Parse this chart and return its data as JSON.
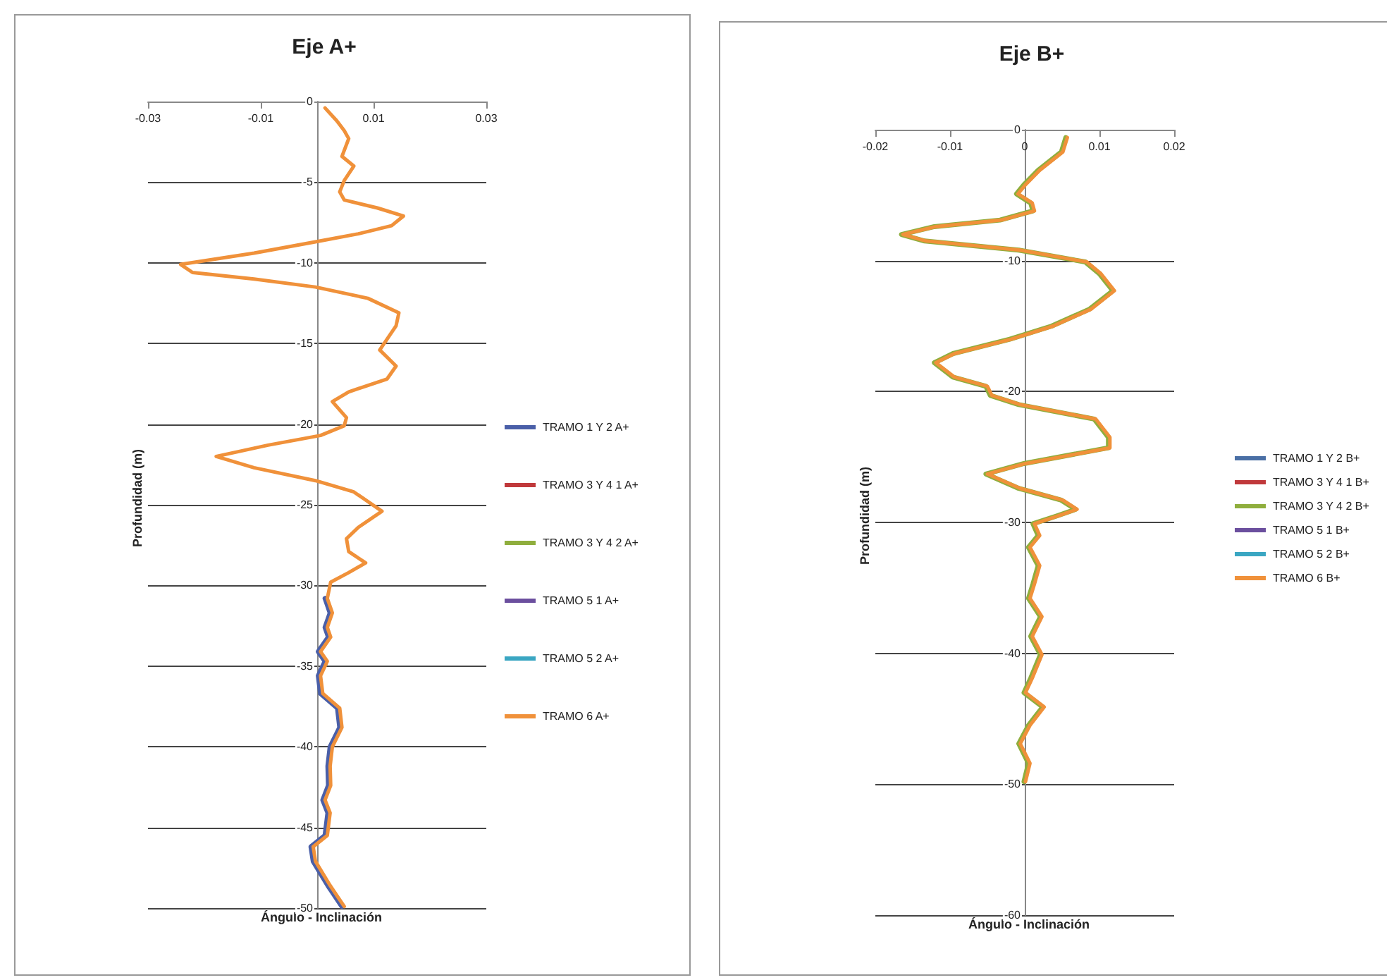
{
  "chart_data": [
    {
      "type": "line",
      "title": "Eje A+",
      "xlabel": "Ángulo - Inclinación",
      "ylabel": "Profundidad (m)",
      "xlim": [
        -0.03,
        0.03
      ],
      "xticks": [
        -0.03,
        -0.01,
        0.01,
        0.03
      ],
      "ylim": [
        -50,
        0
      ],
      "yticks": [
        0,
        -5,
        -10,
        -15,
        -20,
        -25,
        -30,
        -35,
        -40,
        -45,
        -50
      ],
      "grid": "y",
      "legend": "right",
      "line_style": "solid",
      "series": [
        {
          "name": "TRAMO 1 Y 2 A+",
          "color": "#4a5fa8",
          "x": [
            0.0014,
            0.0023,
            0.0014,
            0.002,
            0.0002,
            0.0014,
            0.0002,
            0.0006,
            0.0036,
            0.004,
            0.0023,
            0.0019,
            0.002,
            0.001,
            0.0019,
            0.0014,
            -0.0011,
            -0.0007,
            0.0019,
            0.0044
          ],
          "values": [
            -30.8,
            -31.7,
            -32.6,
            -33.2,
            -34.1,
            -34.7,
            -35.6,
            -36.7,
            -37.6,
            -38.8,
            -40,
            -41.2,
            -42.4,
            -43.3,
            -44.1,
            -45.5,
            -46.2,
            -47.1,
            -48.6,
            -49.9
          ]
        },
        {
          "name": "TRAMO 3 Y 4 1 A+",
          "color": "#c0393b"
        },
        {
          "name": "TRAMO 3 Y 4 2 A+",
          "color": "#8fae3d"
        },
        {
          "name": "TRAMO 5 1 A+",
          "color": "#6b4f9e"
        },
        {
          "name": "TRAMO 5 2 A+",
          "color": "#3aa6c2"
        },
        {
          "name": "TRAMO 6 A+",
          "color": "#f0913a",
          "x": [
            0.0014,
            0.0035,
            0.0048,
            0.0056,
            0.0044,
            0.0065,
            0.0048,
            0.004,
            0.0048,
            0.0107,
            0.0153,
            0.0132,
            0.0073,
            -0.0003,
            -0.0112,
            -0.0242,
            -0.0221,
            -0.0112,
            -0.0003,
            0.009,
            0.0145,
            0.014,
            0.0111,
            0.014,
            0.0124,
            0.0056,
            0.0027,
            0.0052,
            0.0048,
            0.0006,
            -0.0087,
            -0.0179,
            -0.0112,
            -0.0003,
            0.0065,
            0.0115,
            0.0073,
            0.0052,
            0.0056,
            0.0086,
            0.0056,
            0.0024,
            0.0018,
            0.0027,
            0.0018,
            0.0024,
            0.0006,
            0.0018,
            0.0006,
            0.001,
            0.004,
            0.0044,
            0.0027,
            0.0023,
            0.0024,
            0.0014,
            0.0023,
            0.0018,
            -0.0007,
            -0.0003,
            0.0023,
            0.0048
          ],
          "values": [
            -0.4,
            -1.2,
            -1.8,
            -2.3,
            -3.4,
            -4,
            -4.9,
            -5.6,
            -6.1,
            -6.6,
            -7.1,
            -7.7,
            -8.2,
            -8.7,
            -9.4,
            -10.1,
            -10.6,
            -11,
            -11.5,
            -12.2,
            -13.1,
            -13.9,
            -15.4,
            -16.4,
            -17.2,
            -18,
            -18.6,
            -19.6,
            -20.1,
            -20.7,
            -21.3,
            -22,
            -22.7,
            -23.5,
            -24.2,
            -25.4,
            -26.4,
            -27.1,
            -27.9,
            -28.6,
            -29.2,
            -29.8,
            -30.8,
            -31.7,
            -32.6,
            -33.2,
            -34.1,
            -34.7,
            -35.6,
            -36.7,
            -37.6,
            -38.8,
            -40,
            -41.2,
            -42.4,
            -43.3,
            -44.1,
            -45.5,
            -46.2,
            -47.1,
            -48.6,
            -49.9
          ]
        }
      ]
    },
    {
      "type": "line",
      "title": "Eje B+",
      "xlabel": "Ángulo - Inclinación",
      "ylabel": "Profundidad (m)",
      "xlim": [
        -0.02,
        0.02
      ],
      "xticks": [
        -0.02,
        -0.01,
        0,
        0.01,
        0.02
      ],
      "ylim": [
        -60,
        0
      ],
      "yticks": [
        0,
        -10,
        -20,
        -30,
        -40,
        -50,
        -60
      ],
      "grid": "y",
      "legend": "right",
      "line_style": "solid",
      "series": [
        {
          "name": "TRAMO 1 Y 2 B+",
          "color": "#4a6fa5"
        },
        {
          "name": "TRAMO 3 Y 4 1 B+",
          "color": "#c0393b"
        },
        {
          "name": "TRAMO 3 Y 4 2 B+",
          "color": "#8fae3d",
          "x": [
            0.0055,
            0.0049,
            0.0018,
            -0.0001,
            -0.0011,
            0.0008,
            0.0011,
            -0.0033,
            -0.0121,
            -0.0165,
            -0.0134,
            -0.0008,
            0.0081,
            0.01,
            0.0118,
            0.0087,
            0.0036,
            -0.002,
            -0.0096,
            -0.0121,
            -0.0096,
            -0.0052,
            -0.0046,
            -0.0008,
            0.0093,
            0.0112,
            0.0112,
            -0.0001,
            -0.0052,
            -0.0008,
            0.0049,
            0.0068,
            0.0043,
            0.0011,
            0.0018,
            0.0005,
            0.0018,
            0.0011,
            0.0005,
            0.0021,
            0.0008,
            0.0021,
            0.0008,
            -0.0001,
            0.0024,
            0.0005,
            -0.0008,
            0.0005,
            -0.0001
          ],
          "values": [
            -0.6,
            -1.7,
            -3.1,
            -4.2,
            -4.9,
            -5.6,
            -6.2,
            -6.9,
            -7.4,
            -8,
            -8.5,
            -9.2,
            -10.1,
            -11,
            -12.3,
            -13.7,
            -15,
            -16,
            -17.1,
            -17.8,
            -18.9,
            -19.6,
            -20.3,
            -21,
            -22.1,
            -23.5,
            -24.3,
            -25.5,
            -26.3,
            -27.4,
            -28.3,
            -29,
            -29.5,
            -30.1,
            -31,
            -31.9,
            -33.3,
            -34.7,
            -35.8,
            -37.2,
            -38.7,
            -40.1,
            -41.9,
            -43,
            -44.1,
            -45.5,
            -46.9,
            -48.4,
            -49.8
          ]
        },
        {
          "name": "TRAMO 5 1 B+",
          "color": "#6b4f9e"
        },
        {
          "name": "TRAMO 5 2 B+",
          "color": "#3aa6c2"
        },
        {
          "name": "TRAMO 6 B+",
          "color": "#f0913a",
          "x": [
            0.0057,
            0.0051,
            0.002,
            0.0001,
            -0.0009,
            0.001,
            0.0013,
            -0.0031,
            -0.0119,
            -0.0163,
            -0.0132,
            -0.0006,
            0.0083,
            0.0102,
            0.012,
            0.0089,
            0.0038,
            -0.0018,
            -0.0094,
            -0.0119,
            -0.0094,
            -0.005,
            -0.0044,
            -0.0006,
            0.0095,
            0.0114,
            0.0114,
            0.0001,
            -0.005,
            -0.0006,
            0.0051,
            0.007,
            0.0045,
            0.0013,
            0.002,
            0.0007,
            0.002,
            0.0013,
            0.0007,
            0.0023,
            0.001,
            0.0023,
            0.001,
            0.0001,
            0.0026,
            0.0007,
            -0.0006,
            0.0007,
            0.0001
          ],
          "values": [
            -0.6,
            -1.7,
            -3.1,
            -4.2,
            -4.9,
            -5.6,
            -6.2,
            -6.9,
            -7.4,
            -8,
            -8.5,
            -9.2,
            -10.1,
            -11,
            -12.3,
            -13.7,
            -15,
            -16,
            -17.1,
            -17.8,
            -18.9,
            -19.6,
            -20.3,
            -21,
            -22.1,
            -23.5,
            -24.3,
            -25.5,
            -26.3,
            -27.4,
            -28.3,
            -29,
            -29.5,
            -30.1,
            -31,
            -31.9,
            -33.3,
            -34.7,
            -35.8,
            -37.2,
            -38.7,
            -40.1,
            -41.9,
            -43,
            -44.1,
            -45.5,
            -46.9,
            -48.4,
            -49.8
          ]
        }
      ]
    }
  ]
}
